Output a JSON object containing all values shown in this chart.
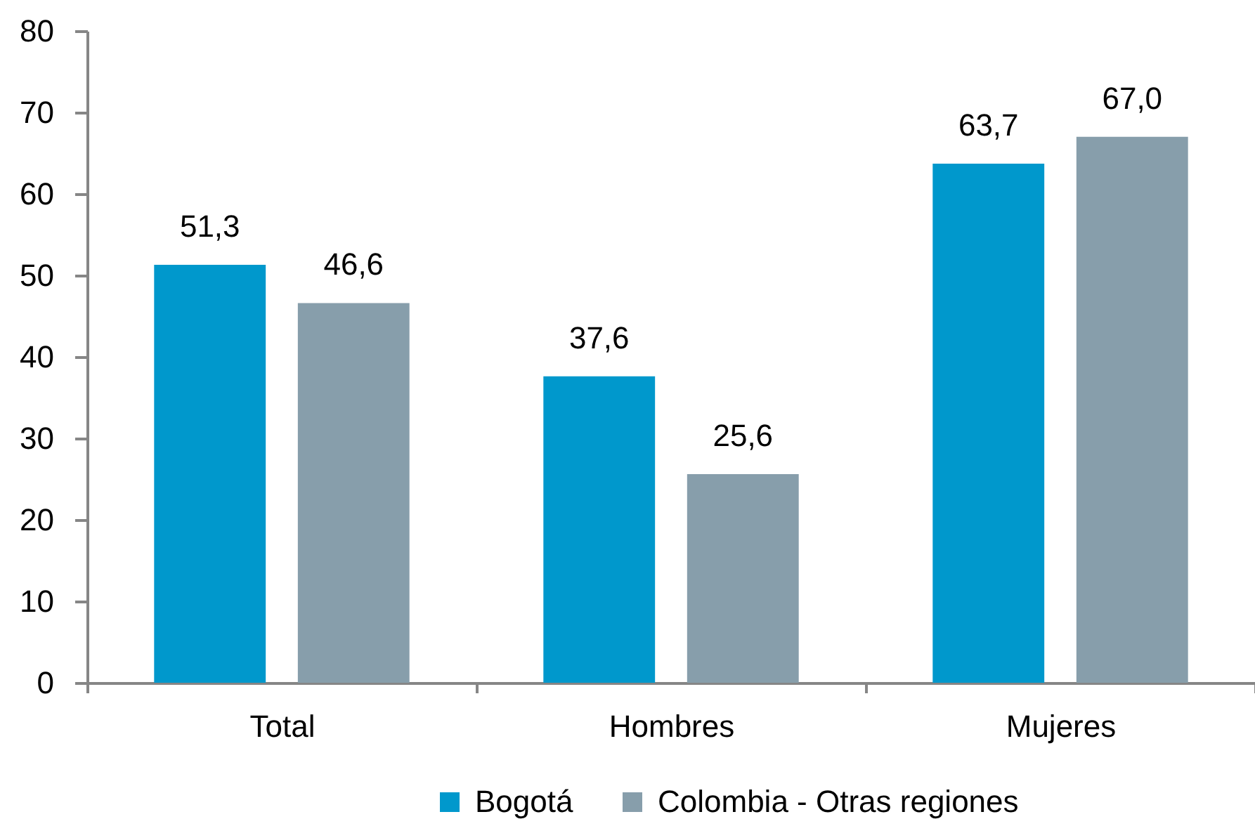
{
  "chart_data": {
    "type": "bar",
    "categories": [
      "Total",
      "Hombres",
      "Mujeres"
    ],
    "series": [
      {
        "name": "Bogotá",
        "color": "#0098cc",
        "values": [
          51.3,
          37.6,
          63.7
        ],
        "value_labels": [
          "51,3",
          "37,6",
          "63,7"
        ]
      },
      {
        "name": "Colombia - Otras regiones",
        "color": "#879eab",
        "values": [
          46.6,
          25.6,
          67.0
        ],
        "value_labels": [
          "46,6",
          "25,6",
          "67,0"
        ]
      }
    ],
    "ylim": [
      0,
      80
    ],
    "yticks": [
      0,
      10,
      20,
      30,
      40,
      50,
      60,
      70,
      80
    ],
    "grid": false,
    "legend": "bottom"
  }
}
